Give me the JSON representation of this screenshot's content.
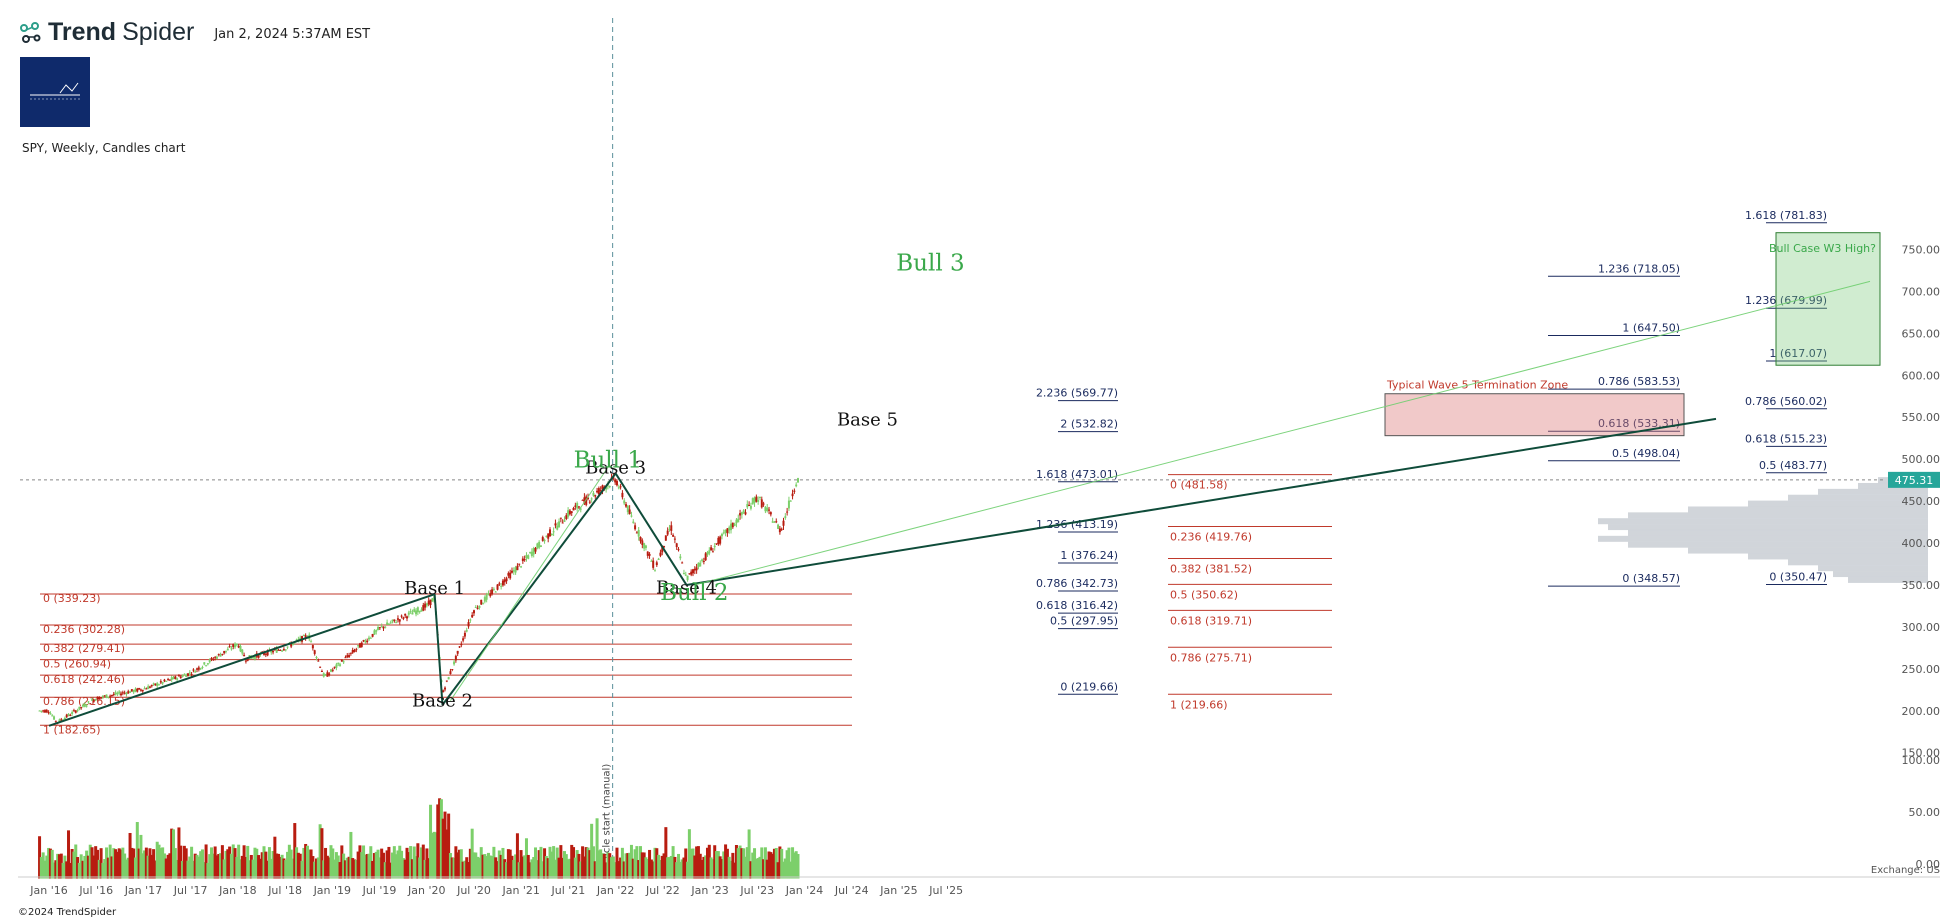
{
  "header": {
    "brand_bold": "Trend",
    "brand_light": "Spider",
    "timestamp": "Jan 2, 2024 5:37AM EST",
    "subtitle": "SPY, Weekly, Candles chart",
    "copyright": "©2024 TrendSpider"
  },
  "colors": {
    "up": "#7ccf6a",
    "down": "#b81c10",
    "trend": "#0f4c3a",
    "fib_red": "#c0392b",
    "fib_navy": "#1a2a5e",
    "annot_green": "#3aa84a",
    "zone_red": "rgba(220,120,120,0.40)",
    "zone_green": "rgba(120,200,120,0.35)",
    "price_tag": "#26a69a"
  },
  "chart_data": {
    "type": "candlestick",
    "title": "SPY, Weekly, Candles chart",
    "x_tick_labels": [
      "Jan '16",
      "Jul '16",
      "Jan '17",
      "Jul '17",
      "Jan '18",
      "Jul '18",
      "Jan '19",
      "Jul '19",
      "Jan '20",
      "Jul '20",
      "Jan '21",
      "Jul '21",
      "Jan '22",
      "Jul '22",
      "Jan '23",
      "Jul '23",
      "Jan '24",
      "Jul '24",
      "Jan '25",
      "Jul '25"
    ],
    "y_tick_labels": [
      "750.00",
      "700.00",
      "650.00",
      "600.00",
      "550.00",
      "500.00",
      "450.00",
      "400.00",
      "350.00",
      "300.00",
      "250.00",
      "200.00",
      "150.00",
      "100.00",
      "50.00",
      "0.00"
    ],
    "ylim": [
      0,
      790
    ],
    "last_price": "475.31",
    "price_path": [
      {
        "x": "Jan '16",
        "y": 200
      },
      {
        "x": "Feb '16",
        "y": 186
      },
      {
        "x": "Jul '16",
        "y": 215
      },
      {
        "x": "Jan '17",
        "y": 226
      },
      {
        "x": "Jul '17",
        "y": 245
      },
      {
        "x": "Jan '18",
        "y": 280
      },
      {
        "x": "Feb '18",
        "y": 262
      },
      {
        "x": "Jul '18",
        "y": 275
      },
      {
        "x": "Oct '18",
        "y": 290
      },
      {
        "x": "Dec '18",
        "y": 240
      },
      {
        "x": "Jul '19",
        "y": 298
      },
      {
        "x": "Jan '20",
        "y": 325
      },
      {
        "x": "Feb '20",
        "y": 335
      },
      {
        "x": "Mar '20",
        "y": 220
      },
      {
        "x": "Jul '20",
        "y": 320
      },
      {
        "x": "Jan '21",
        "y": 375
      },
      {
        "x": "Jul '21",
        "y": 435
      },
      {
        "x": "Jan '22",
        "y": 477
      },
      {
        "x": "Mar '22",
        "y": 430
      },
      {
        "x": "Jun '22",
        "y": 370
      },
      {
        "x": "Aug '22",
        "y": 420
      },
      {
        "x": "Oct '22",
        "y": 357
      },
      {
        "x": "Jan '23",
        "y": 390
      },
      {
        "x": "Jul '23",
        "y": 455
      },
      {
        "x": "Oct '23",
        "y": 415
      },
      {
        "x": "Dec '23",
        "y": 475
      }
    ],
    "volume_axis_labels": [
      "100.00",
      "50.00",
      "0.00"
    ],
    "exchange_label": "Exchange: US",
    "cycle_label": "Cycle start (manual)",
    "labels": [
      {
        "text": "Base 1",
        "x": "Feb '20",
        "y": 339
      },
      {
        "text": "Base 2",
        "x": "Mar '20",
        "y": 205
      },
      {
        "text": "Base 3",
        "x": "Jan '22",
        "y": 483
      },
      {
        "text": "Base 4",
        "x": "Oct '22",
        "y": 340
      },
      {
        "text": "Base 5",
        "x": "Sep '24",
        "y": 540
      },
      {
        "text": "Bull 1",
        "x": "Dec '21",
        "y": 490
      },
      {
        "text": "Bull 2",
        "x": "Nov '22",
        "y": 332
      },
      {
        "text": "Bull 3",
        "x": "May '25",
        "y": 725
      }
    ],
    "zone_labels": {
      "wave5": "Typical Wave 5 Termination Zone",
      "bull_case": "Bull Case W3 High?"
    },
    "fib_sets": [
      {
        "color": "red",
        "levels": [
          "0 (339.23)",
          "0.236 (302.28)",
          "0.382 (279.41)",
          "0.5 (260.94)",
          "0.618 (242.46)",
          "0.786 (216.15)",
          "1 (182.65)"
        ]
      },
      {
        "color": "navy",
        "levels": [
          "2.236 (569.77)",
          "2 (532.82)",
          "1.618 (473.01)",
          "1.236 (413.19)",
          "1 (376.24)",
          "0.786 (342.73)",
          "0.618 (316.42)",
          "0.5 (297.95)",
          "0 (219.66)"
        ]
      },
      {
        "color": "red",
        "levels": [
          "0 (481.58)",
          "0.236 (419.76)",
          "0.382 (381.52)",
          "0.5 (350.62)",
          "0.618 (319.71)",
          "0.786 (275.71)",
          "1 (219.66)"
        ]
      },
      {
        "color": "navy",
        "levels": [
          "1.236 (718.05)",
          "1 (647.50)",
          "0.786 (583.53)",
          "0.618 (533.31)",
          "0.5 (498.04)",
          "0 (348.57)"
        ]
      },
      {
        "color": "navy",
        "levels": [
          "1.618 (781.83)",
          "1.236 (679.99)",
          "1 (617.07)",
          "0.786 (560.02)",
          "0.618 (515.23)",
          "0.5 (483.77)",
          "0 (350.47)"
        ]
      }
    ]
  }
}
